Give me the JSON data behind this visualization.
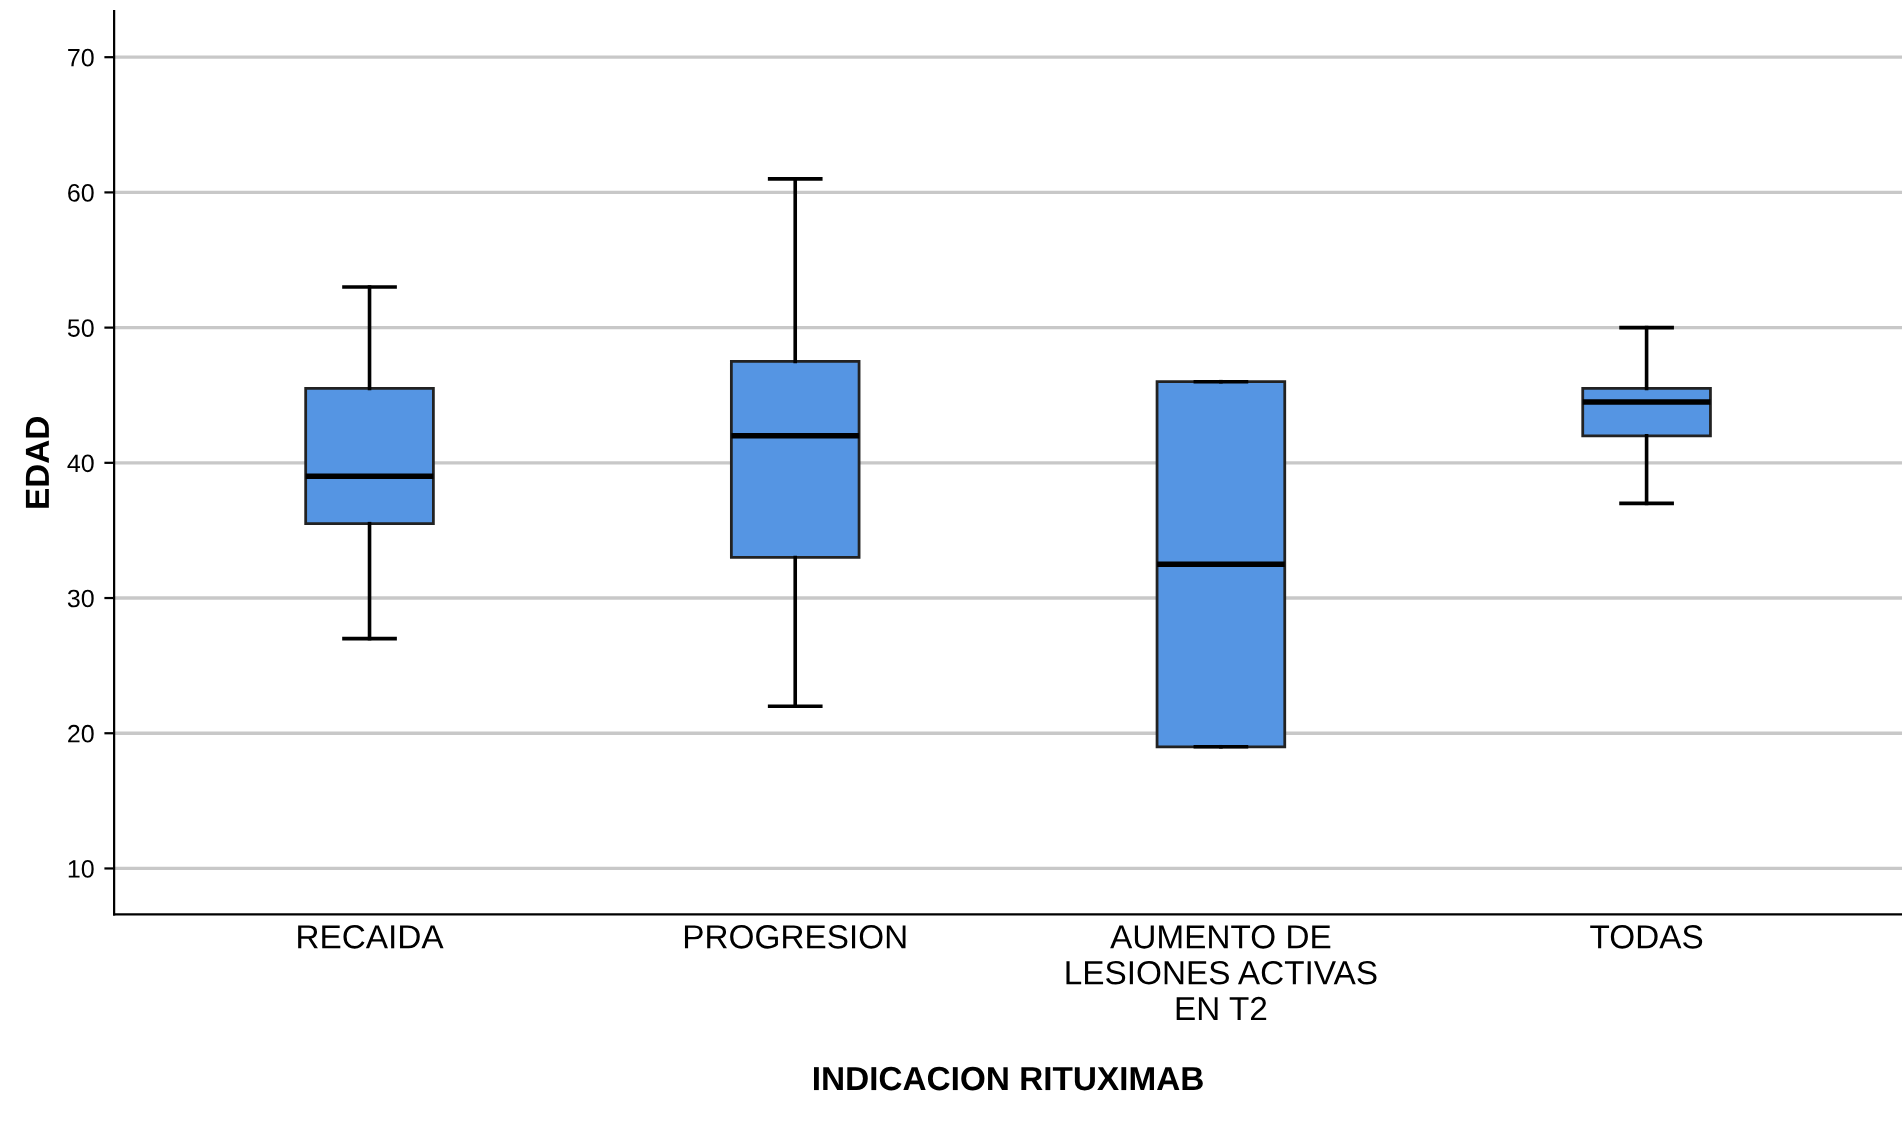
{
  "chart_data": {
    "type": "box",
    "xlabel": "INDICACION RITUXIMAB",
    "ylabel": "EDAD",
    "categories": [
      "RECAIDA",
      "PROGRESION",
      "AUMENTO DE\nLESIONES ACTIVAS\nEN T2",
      "TODAS"
    ],
    "boxes": [
      {
        "low": 27,
        "q1": 35.5,
        "median": 39,
        "q3": 45.5,
        "high": 53
      },
      {
        "low": 22,
        "q1": 33,
        "median": 42,
        "q3": 47.5,
        "high": 61
      },
      {
        "low": 19,
        "q1": 19,
        "median": 32.5,
        "q3": 46,
        "high": 46
      },
      {
        "low": 37,
        "q1": 42,
        "median": 44.5,
        "q3": 45.5,
        "high": 50
      }
    ],
    "color": "#5595e3",
    "ylim": [
      6.6,
      73.4
    ],
    "yticks": [
      10,
      20,
      30,
      40,
      50,
      60,
      70
    ],
    "grid": "y"
  }
}
